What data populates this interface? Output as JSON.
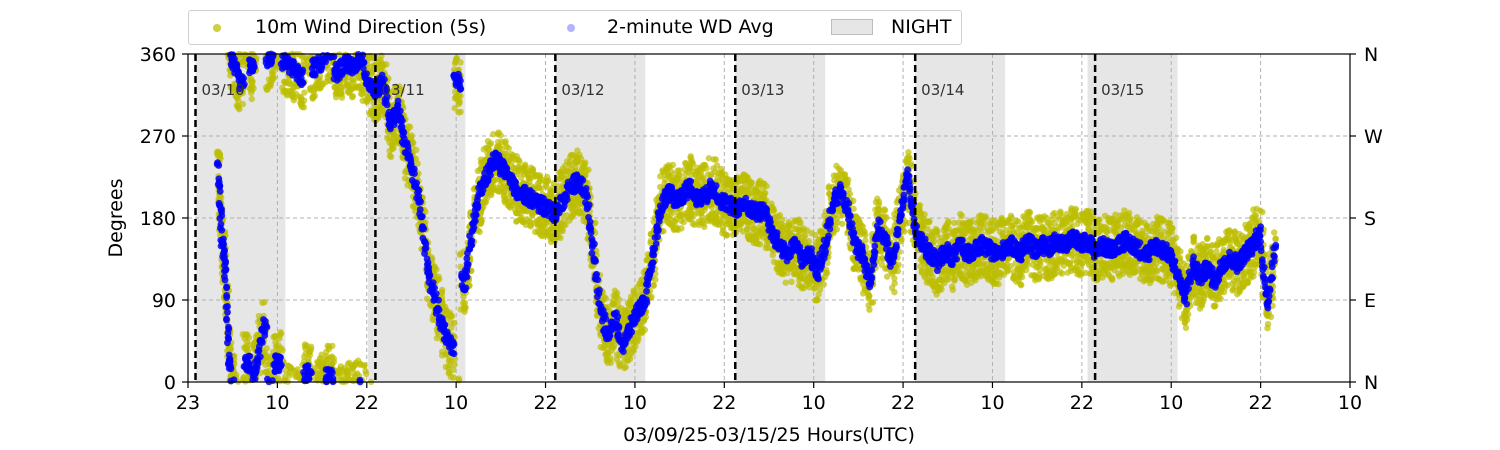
{
  "chart_data": {
    "type": "scatter",
    "xlabel": "03/09/25-03/15/25  Hours(UTC)",
    "ylabel": "Degrees",
    "ylim": [
      0,
      360
    ],
    "xlim_hours": [
      0,
      155
    ],
    "x_tick_labels": [
      "23",
      "10",
      "22",
      "10",
      "22",
      "10",
      "22",
      "10",
      "22",
      "10",
      "22",
      "10",
      "22",
      "10"
    ],
    "y_ticks": [
      0,
      90,
      180,
      270,
      360
    ],
    "y_tick_labels": [
      "0",
      "90",
      "180",
      "270",
      "360"
    ],
    "y2_tick_labels": [
      "N",
      "E",
      "S",
      "W",
      "N"
    ],
    "grid": "dashed",
    "legend_placement": "top",
    "legend": {
      "wind": "10m Wind Direction (5s)",
      "avg": "2-minute WD Avg",
      "night": "NIGHT"
    },
    "colors": {
      "wind": "#bcbd00",
      "avg": "#0000ff",
      "night": "#e6e6e6",
      "grid": "#b0b0b0",
      "day_line": "#000000"
    },
    "day_markers": [
      {
        "label": "03/10",
        "hour": 1
      },
      {
        "label": "03/11",
        "hour": 25
      },
      {
        "label": "03/12",
        "hour": 49
      },
      {
        "label": "03/13",
        "hour": 73
      },
      {
        "label": "03/14",
        "hour": 97
      },
      {
        "label": "03/15",
        "hour": 121
      }
    ],
    "night_periods": [
      [
        1,
        13
      ],
      [
        24,
        37
      ],
      [
        49,
        61
      ],
      [
        73,
        85
      ],
      [
        97,
        109
      ],
      [
        120,
        132
      ]
    ],
    "series": [
      {
        "name": "2-minute WD Avg",
        "points": [
          [
            4,
            240
          ],
          [
            4.5,
            160
          ],
          [
            5,
            120
          ],
          [
            5.5,
            20
          ],
          [
            6,
            355
          ],
          [
            7,
            330
          ],
          [
            8,
            20
          ],
          [
            8.5,
            345
          ],
          [
            9,
            10
          ],
          [
            10,
            60
          ],
          [
            11,
            355
          ],
          [
            12,
            20
          ],
          [
            13,
            350
          ],
          [
            14,
            345
          ],
          [
            15,
            335
          ],
          [
            16,
            10
          ],
          [
            17,
            345
          ],
          [
            18,
            355
          ],
          [
            19,
            5
          ],
          [
            20,
            340
          ],
          [
            21,
            350
          ],
          [
            22,
            345
          ],
          [
            23,
            355
          ],
          [
            24,
            330
          ],
          [
            25,
            320
          ],
          [
            26,
            330
          ],
          [
            27,
            280
          ],
          [
            28,
            300
          ],
          [
            29,
            260
          ],
          [
            30,
            230
          ],
          [
            31,
            190
          ],
          [
            32,
            120
          ],
          [
            33,
            90
          ],
          [
            34,
            60
          ],
          [
            35,
            40
          ],
          [
            36,
            330
          ],
          [
            37,
            110
          ],
          [
            38,
            170
          ],
          [
            39,
            210
          ],
          [
            40,
            230
          ],
          [
            41,
            245
          ],
          [
            42,
            235
          ],
          [
            43,
            220
          ],
          [
            44,
            210
          ],
          [
            45,
            205
          ],
          [
            46,
            200
          ],
          [
            47,
            195
          ],
          [
            48,
            190
          ],
          [
            49,
            185
          ],
          [
            50,
            200
          ],
          [
            51,
            215
          ],
          [
            52,
            220
          ],
          [
            53,
            210
          ],
          [
            54,
            150
          ],
          [
            55,
            80
          ],
          [
            56,
            50
          ],
          [
            57,
            70
          ],
          [
            58,
            40
          ],
          [
            59,
            60
          ],
          [
            60,
            80
          ],
          [
            61,
            90
          ],
          [
            62,
            140
          ],
          [
            63,
            190
          ],
          [
            64,
            210
          ],
          [
            65,
            200
          ],
          [
            66,
            205
          ],
          [
            67,
            215
          ],
          [
            68,
            200
          ],
          [
            69,
            205
          ],
          [
            70,
            215
          ],
          [
            71,
            200
          ],
          [
            72,
            195
          ],
          [
            73,
            190
          ],
          [
            74,
            195
          ],
          [
            75,
            190
          ],
          [
            76,
            185
          ],
          [
            77,
            190
          ],
          [
            78,
            160
          ],
          [
            79,
            150
          ],
          [
            80,
            140
          ],
          [
            81,
            150
          ],
          [
            82,
            135
          ],
          [
            83,
            140
          ],
          [
            84,
            120
          ],
          [
            85,
            150
          ],
          [
            86,
            195
          ],
          [
            87,
            210
          ],
          [
            88,
            190
          ],
          [
            89,
            150
          ],
          [
            90,
            140
          ],
          [
            91,
            110
          ],
          [
            92,
            170
          ],
          [
            93,
            155
          ],
          [
            94,
            130
          ],
          [
            95,
            180
          ],
          [
            96,
            230
          ],
          [
            97,
            170
          ],
          [
            98,
            150
          ],
          [
            99,
            140
          ],
          [
            100,
            130
          ],
          [
            101,
            145
          ],
          [
            102,
            135
          ],
          [
            103,
            150
          ],
          [
            104,
            140
          ],
          [
            105,
            145
          ],
          [
            106,
            150
          ],
          [
            107,
            145
          ],
          [
            108,
            140
          ],
          [
            109,
            148
          ],
          [
            110,
            150
          ],
          [
            111,
            140
          ],
          [
            112,
            155
          ],
          [
            113,
            145
          ],
          [
            114,
            150
          ],
          [
            115,
            148
          ],
          [
            116,
            155
          ],
          [
            117,
            150
          ],
          [
            118,
            160
          ],
          [
            119,
            150
          ],
          [
            120,
            155
          ],
          [
            121,
            145
          ],
          [
            122,
            150
          ],
          [
            123,
            145
          ],
          [
            124,
            150
          ],
          [
            125,
            155
          ],
          [
            126,
            150
          ],
          [
            127,
            145
          ],
          [
            128,
            140
          ],
          [
            129,
            150
          ],
          [
            130,
            145
          ],
          [
            131,
            140
          ],
          [
            132,
            120
          ],
          [
            133,
            90
          ],
          [
            134,
            130
          ],
          [
            135,
            115
          ],
          [
            136,
            125
          ],
          [
            137,
            110
          ],
          [
            138,
            130
          ],
          [
            139,
            135
          ],
          [
            140,
            130
          ],
          [
            141,
            140
          ],
          [
            142,
            150
          ],
          [
            143,
            165
          ],
          [
            144,
            80
          ],
          [
            145,
            150
          ]
        ]
      }
    ]
  }
}
